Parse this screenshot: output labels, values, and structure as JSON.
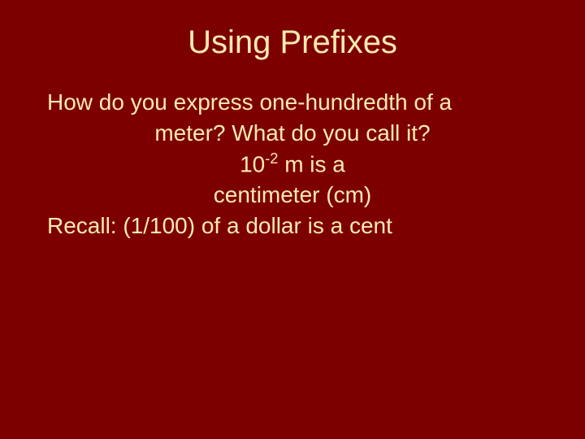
{
  "slide": {
    "title": "Using Prefixes",
    "line1": "How do you express one-hundredth of a",
    "line2": "meter?   What do you call it?",
    "line3_pre": "10",
    "line3_exp": "-2",
    "line3_post": " m is a",
    "line4": "centimeter  (cm)",
    "line5": "Recall: (1/100) of a dollar is a cent"
  },
  "colors": {
    "background": "#7d0000",
    "text": "#fbeab1"
  },
  "typography": {
    "title_fontsize": 40,
    "body_fontsize": 28,
    "font_family": "Verdana"
  }
}
